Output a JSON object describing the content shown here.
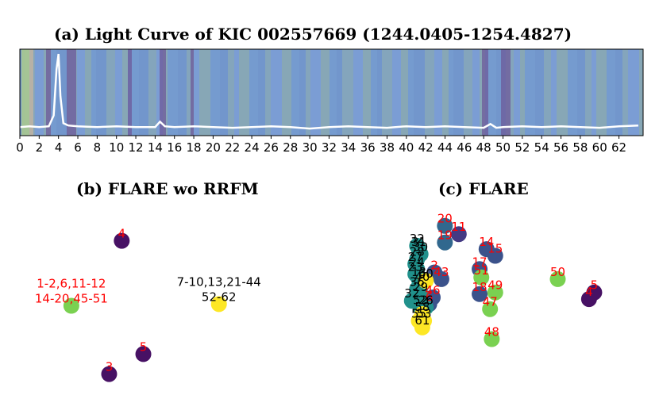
{
  "chart_data": [
    {
      "type": "line",
      "title": "(a) Light Curve of KIC 002557669 (1244.0405-1254.4827)",
      "xlabel": "",
      "ylabel": "",
      "xlim": [
        0,
        64.5
      ],
      "xticks": [
        "0",
        "2",
        "4",
        "6",
        "8",
        "10",
        "12",
        "14",
        "16",
        "18",
        "20",
        "22",
        "24",
        "26",
        "28",
        "30",
        "32",
        "34",
        "36",
        "38",
        "40",
        "42",
        "44",
        "46",
        "48",
        "50",
        "52",
        "54",
        "56",
        "58",
        "60",
        "62"
      ],
      "grid": false,
      "series": [
        {
          "values_x": [
            0,
            1,
            2,
            3,
            3.5,
            3.8,
            4.0,
            4.2,
            4.5,
            5,
            6,
            8,
            10,
            12,
            14,
            14.5,
            15,
            16,
            18,
            20,
            22,
            24,
            26,
            28,
            30,
            32,
            34,
            36,
            38,
            40,
            42,
            44,
            46,
            48,
            48.7,
            49.3,
            50,
            52,
            54,
            56,
            58,
            60,
            62,
            64
          ],
          "values_y": [
            0.05,
            0.06,
            0.05,
            0.06,
            0.2,
            0.8,
            1.0,
            0.45,
            0.1,
            0.07,
            0.06,
            0.05,
            0.06,
            0.05,
            0.05,
            0.12,
            0.06,
            0.05,
            0.06,
            0.05,
            0.04,
            0.05,
            0.06,
            0.05,
            0.03,
            0.05,
            0.06,
            0.05,
            0.04,
            0.06,
            0.05,
            0.06,
            0.05,
            0.04,
            0.09,
            0.04,
            0.05,
            0.06,
            0.05,
            0.06,
            0.05,
            0.04,
            0.06,
            0.07
          ]
        }
      ]
    },
    {
      "type": "scatter",
      "title": "(b) FLARE wo RRFM",
      "xlabel": "",
      "ylabel": "",
      "grid": false,
      "points": [
        {
          "x": 2.0,
          "y": 8.4,
          "label": "4",
          "label_color": "#ff0000",
          "color": "#471164"
        },
        {
          "x": -0.8,
          "y": 4.5,
          "label": "1-2,6,11-12\n14-20,45-51",
          "label_color": "#ff0000",
          "color": "#7ad151"
        },
        {
          "x": 7.4,
          "y": 4.6,
          "label": "7-10,13,21-44\n52-62",
          "label_color": "#000000",
          "color": "#fde725"
        },
        {
          "x": 3.2,
          "y": 1.6,
          "label": "5",
          "label_color": "#ff0000",
          "color": "#471164"
        },
        {
          "x": 1.3,
          "y": 0.4,
          "label": "3",
          "label_color": "#ff0000",
          "color": "#471164"
        }
      ]
    },
    {
      "type": "scatter",
      "title": "(c) FLARE",
      "xlabel": "",
      "ylabel": "",
      "grid": false,
      "points": [
        {
          "x": 5.5,
          "y": 9.3,
          "label": "20",
          "label_color": "#ff0000",
          "color": "#31688e"
        },
        {
          "x": 6.3,
          "y": 8.8,
          "label": "11",
          "label_color": "#ff0000",
          "color": "#443a83"
        },
        {
          "x": 5.5,
          "y": 8.3,
          "label": "19",
          "label_color": "#ff0000",
          "color": "#31688e"
        },
        {
          "x": 7.9,
          "y": 7.9,
          "label": "14",
          "label_color": "#ff0000",
          "color": "#3b528b"
        },
        {
          "x": 8.4,
          "y": 7.5,
          "label": "15",
          "label_color": "#ff0000",
          "color": "#3b528b"
        },
        {
          "x": 7.5,
          "y": 6.7,
          "label": "17",
          "label_color": "#ff0000",
          "color": "#3b528b"
        },
        {
          "x": 7.6,
          "y": 6.2,
          "label": "51",
          "label_color": "#ff0000",
          "color": "#7ad151"
        },
        {
          "x": 5.3,
          "y": 6.1,
          "label": "43",
          "label_color": "#ff0000",
          "color": "#3b528b"
        },
        {
          "x": 4.9,
          "y": 6.5,
          "label": "2",
          "label_color": "#ff0000",
          "color": "#3b528b"
        },
        {
          "x": 12.0,
          "y": 6.1,
          "label": "50",
          "label_color": "#ff0000",
          "color": "#7ad151"
        },
        {
          "x": 7.5,
          "y": 5.2,
          "label": "18",
          "label_color": "#ff0000",
          "color": "#3b528b"
        },
        {
          "x": 8.4,
          "y": 5.3,
          "label": "49",
          "label_color": "#ff0000",
          "color": "#7ad151"
        },
        {
          "x": 4.8,
          "y": 5.0,
          "label": "46",
          "label_color": "#ff0000",
          "color": "#3b528b"
        },
        {
          "x": 8.1,
          "y": 4.3,
          "label": "47",
          "label_color": "#ff0000",
          "color": "#7ad151"
        },
        {
          "x": 14.1,
          "y": 5.3,
          "label": "5",
          "label_color": "#ff0000",
          "color": "#471164"
        },
        {
          "x": 13.8,
          "y": 4.9,
          "label": "4",
          "label_color": "#ff0000",
          "color": "#471164"
        },
        {
          "x": 8.2,
          "y": 2.5,
          "label": "48",
          "label_color": "#ff0000",
          "color": "#7ad151"
        },
        {
          "x": 4.6,
          "y": 4.6,
          "label": "6",
          "label_color": "#ff0000",
          "color": "#3b528b"
        },
        {
          "x": 3.9,
          "y": 8.1,
          "label": "32",
          "label_color": "#000000",
          "color": "#21918c"
        },
        {
          "x": 4.0,
          "y": 7.9,
          "label": "31",
          "label_color": "#000000",
          "color": "#21918c"
        },
        {
          "x": 4.1,
          "y": 7.6,
          "label": "30",
          "label_color": "#000000",
          "color": "#21918c"
        },
        {
          "x": 3.9,
          "y": 7.3,
          "label": "28",
          "label_color": "#000000",
          "color": "#21918c"
        },
        {
          "x": 3.8,
          "y": 7.0,
          "label": "27",
          "label_color": "#000000",
          "color": "#21918c"
        },
        {
          "x": 3.9,
          "y": 6.7,
          "label": "24",
          "label_color": "#000000",
          "color": "#21918c"
        },
        {
          "x": 3.8,
          "y": 6.4,
          "label": "23",
          "label_color": "#000000",
          "color": "#21918c"
        },
        {
          "x": 4.0,
          "y": 6.1,
          "label": "13",
          "label_color": "#000000",
          "color": "#21918c"
        },
        {
          "x": 4.2,
          "y": 5.8,
          "label": "40",
          "label_color": "#000000",
          "color": "#21918c"
        },
        {
          "x": 3.9,
          "y": 5.5,
          "label": "36",
          "label_color": "#000000",
          "color": "#21918c"
        },
        {
          "x": 4.1,
          "y": 5.2,
          "label": "29",
          "label_color": "#000000",
          "color": "#21918c"
        },
        {
          "x": 3.6,
          "y": 4.8,
          "label": "32",
          "label_color": "#000000",
          "color": "#21918c"
        },
        {
          "x": 4.1,
          "y": 4.4,
          "label": "52",
          "label_color": "#000000",
          "color": "#21918c"
        },
        {
          "x": 4.4,
          "y": 4.4,
          "label": "26",
          "label_color": "#000000",
          "color": "#21918c"
        },
        {
          "x": 4.2,
          "y": 4.0,
          "label": "58",
          "label_color": "#000000",
          "color": "#fde725"
        },
        {
          "x": 4.0,
          "y": 3.6,
          "label": "55",
          "label_color": "#000000",
          "color": "#fde725"
        },
        {
          "x": 4.3,
          "y": 3.6,
          "label": "53",
          "label_color": "#000000",
          "color": "#fde725"
        },
        {
          "x": 4.2,
          "y": 3.2,
          "label": "61",
          "label_color": "#000000",
          "color": "#fde725"
        },
        {
          "x": 4.4,
          "y": 6.0,
          "label": "60",
          "label_color": "#000000",
          "color": "#fde725"
        }
      ]
    }
  ]
}
